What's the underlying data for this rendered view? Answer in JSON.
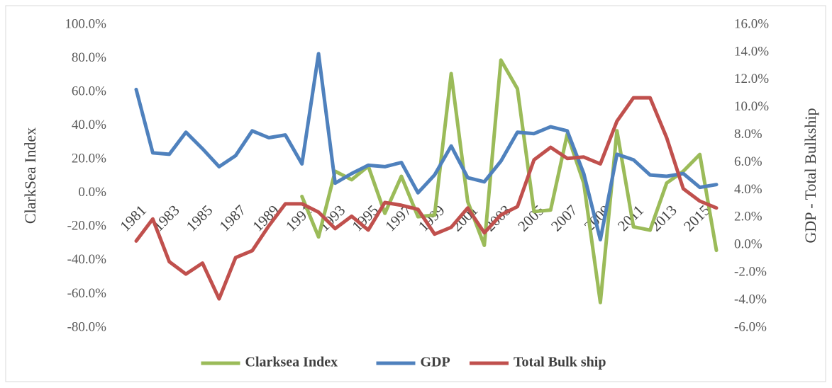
{
  "chart_data": {
    "type": "line",
    "categories": [
      "1981",
      null,
      "1983",
      null,
      "1985",
      null,
      "1987",
      null,
      "1989",
      null,
      "1991",
      null,
      "1993",
      null,
      "1995",
      null,
      "1997",
      null,
      "1999",
      null,
      "2001",
      null,
      "2003",
      null,
      "2005",
      null,
      "2007",
      null,
      "2009",
      null,
      "2011",
      null,
      "2013",
      null,
      "2015",
      null
    ],
    "series": [
      {
        "name": "Clarksea Index",
        "color": "#9bbb59",
        "axis": "y",
        "values": [
          null,
          null,
          null,
          null,
          null,
          null,
          null,
          null,
          null,
          null,
          -2,
          -26,
          13,
          8,
          16,
          -12,
          10,
          -14,
          -13,
          71,
          -5,
          -31,
          79,
          62,
          -11,
          -10,
          35,
          6,
          -65,
          37,
          -20,
          -22,
          6,
          13,
          23,
          -34
        ]
      },
      {
        "name": "GDP",
        "color": "#4f81bd",
        "axis": "y2",
        "values": [
          11.3,
          6.7,
          6.6,
          8.2,
          7.0,
          5.7,
          6.5,
          8.3,
          7.8,
          8.0,
          5.9,
          13.9,
          4.5,
          5.2,
          5.8,
          5.7,
          6.0,
          3.8,
          5.1,
          7.2,
          4.9,
          4.6,
          6.1,
          8.2,
          8.1,
          8.6,
          8.3,
          5.2,
          0.4,
          6.6,
          6.2,
          5.1,
          5.0,
          5.2,
          4.2,
          4.4
        ]
      },
      {
        "name": "Total Bulk ship",
        "color": "#c0504d",
        "axis": "y2",
        "values": [
          0.3,
          1.9,
          -1.2,
          -2.1,
          -1.3,
          -3.9,
          -0.9,
          -0.4,
          1.4,
          3.0,
          3.0,
          2.4,
          1.2,
          2.1,
          1.1,
          3.1,
          2.9,
          2.6,
          0.8,
          1.3,
          2.7,
          0.9,
          2.2,
          2.8,
          6.2,
          7.1,
          6.3,
          6.4,
          5.9,
          9.0,
          10.7,
          10.7,
          7.8,
          4.1,
          3.2,
          2.7
        ]
      }
    ],
    "ylabel": "ClarkSea Index",
    "y2label": "GDP - Total Bulkship",
    "ylim": [
      -80,
      100
    ],
    "yticks": [
      {
        "value": -80,
        "label": "-80.0%"
      },
      {
        "value": -60,
        "label": "-60.0%"
      },
      {
        "value": -40,
        "label": "-40.0%"
      },
      {
        "value": -20,
        "label": "-20.0%"
      },
      {
        "value": 0,
        "label": "0.0%"
      },
      {
        "value": 20,
        "label": "20.0%"
      },
      {
        "value": 40,
        "label": "40.0%"
      },
      {
        "value": 60,
        "label": "60.0%"
      },
      {
        "value": 80,
        "label": "80.0%"
      },
      {
        "value": 100,
        "label": "100.0%"
      }
    ],
    "y2lim": [
      -6,
      16
    ],
    "y2ticks": [
      {
        "value": -6,
        "label": "-6.0%"
      },
      {
        "value": -4,
        "label": "-4.0%"
      },
      {
        "value": -2,
        "label": "-2.0%"
      },
      {
        "value": 0,
        "label": "0.0%"
      },
      {
        "value": 2,
        "label": "2.0%"
      },
      {
        "value": 4,
        "label": "4.0%"
      },
      {
        "value": 6,
        "label": "6.0%"
      },
      {
        "value": 8,
        "label": "8.0%"
      },
      {
        "value": 10,
        "label": "10.0%"
      },
      {
        "value": 12,
        "label": "12.0%"
      },
      {
        "value": 14,
        "label": "14.0%"
      },
      {
        "value": 16,
        "label": "16.0%"
      }
    ],
    "legend": "bottom"
  }
}
